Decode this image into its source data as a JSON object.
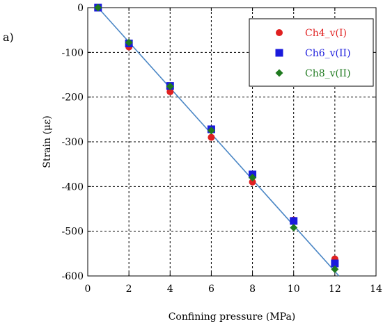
{
  "panel_label": "a)",
  "chart_data": {
    "type": "scatter",
    "title": "",
    "xlabel": "Confining pressure (MPa)",
    "ylabel": "Strain (με)",
    "xlim": [
      0,
      14
    ],
    "ylim": [
      -600,
      0
    ],
    "x_ticks": [
      0,
      2,
      4,
      6,
      8,
      10,
      12,
      14
    ],
    "y_ticks": [
      0,
      -100,
      -200,
      -300,
      -400,
      -500,
      -600
    ],
    "grid": true,
    "legend_position": "top-right",
    "series": [
      {
        "name": "Ch4_v(I)",
        "marker": "circle",
        "color": "#e02020",
        "x": [
          0.5,
          2,
          4,
          6,
          8,
          10,
          12
        ],
        "y": [
          0,
          -88,
          -188,
          -290,
          -390,
          -475,
          -562
        ]
      },
      {
        "name": "Ch6_v(II)",
        "marker": "square",
        "color": "#1a1adc",
        "x": [
          0.5,
          2,
          4,
          6,
          8,
          10,
          12
        ],
        "y": [
          0,
          -80,
          -175,
          -272,
          -373,
          -477,
          -572
        ]
      },
      {
        "name": "Ch8_v(II)",
        "marker": "diamond",
        "color": "#1f7a1f",
        "x": [
          0.5,
          2,
          4,
          6,
          8,
          10,
          12
        ],
        "y": [
          0,
          -78,
          -176,
          -275,
          -380,
          -492,
          -585
        ]
      }
    ],
    "fit_line": {
      "color": "#4a86c5",
      "x": [
        0.5,
        12.2
      ],
      "y": [
        0,
        -600
      ]
    }
  }
}
